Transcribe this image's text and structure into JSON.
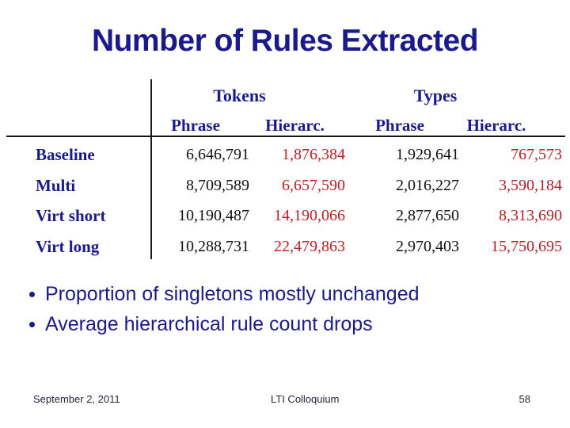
{
  "title": "Number of Rules Extracted",
  "table": {
    "group_headers": {
      "tokens": "Tokens",
      "types": "Types"
    },
    "col_headers": {
      "phrase1": "Phrase",
      "hierarc1": "Hierarc.",
      "phrase2": "Phrase",
      "hierarc2": "Hierarc."
    },
    "rows": [
      {
        "label": "Baseline",
        "tokens_phrase": "6,646,791",
        "tokens_hierarc": "1,876,384",
        "types_phrase": "1,929,641",
        "types_hierarc": "767,573"
      },
      {
        "label": "Multi",
        "tokens_phrase": "8,709,589",
        "tokens_hierarc": "6,657,590",
        "types_phrase": "2,016,227",
        "types_hierarc": "3,590,184"
      },
      {
        "label": "Virt short",
        "tokens_phrase": "10,190,487",
        "tokens_hierarc": "14,190,066",
        "types_phrase": "2,877,650",
        "types_hierarc": "8,313,690"
      },
      {
        "label": "Virt long",
        "tokens_phrase": "10,288,731",
        "tokens_hierarc": "22,479,863",
        "types_phrase": "2,970,403",
        "types_hierarc": "15,750,695"
      }
    ]
  },
  "bullets": [
    {
      "text": "Proportion of singletons mostly unchanged"
    },
    {
      "text": "Average hierarchical rule count drops"
    }
  ],
  "footer": {
    "date": "September 2, 2011",
    "venue": "LTI Colloquium",
    "slide_number": "58"
  },
  "colors": {
    "navy": "#1a1a8c",
    "data_black": "#111111",
    "data_red": "#b91f25",
    "background": "#ffffff"
  }
}
